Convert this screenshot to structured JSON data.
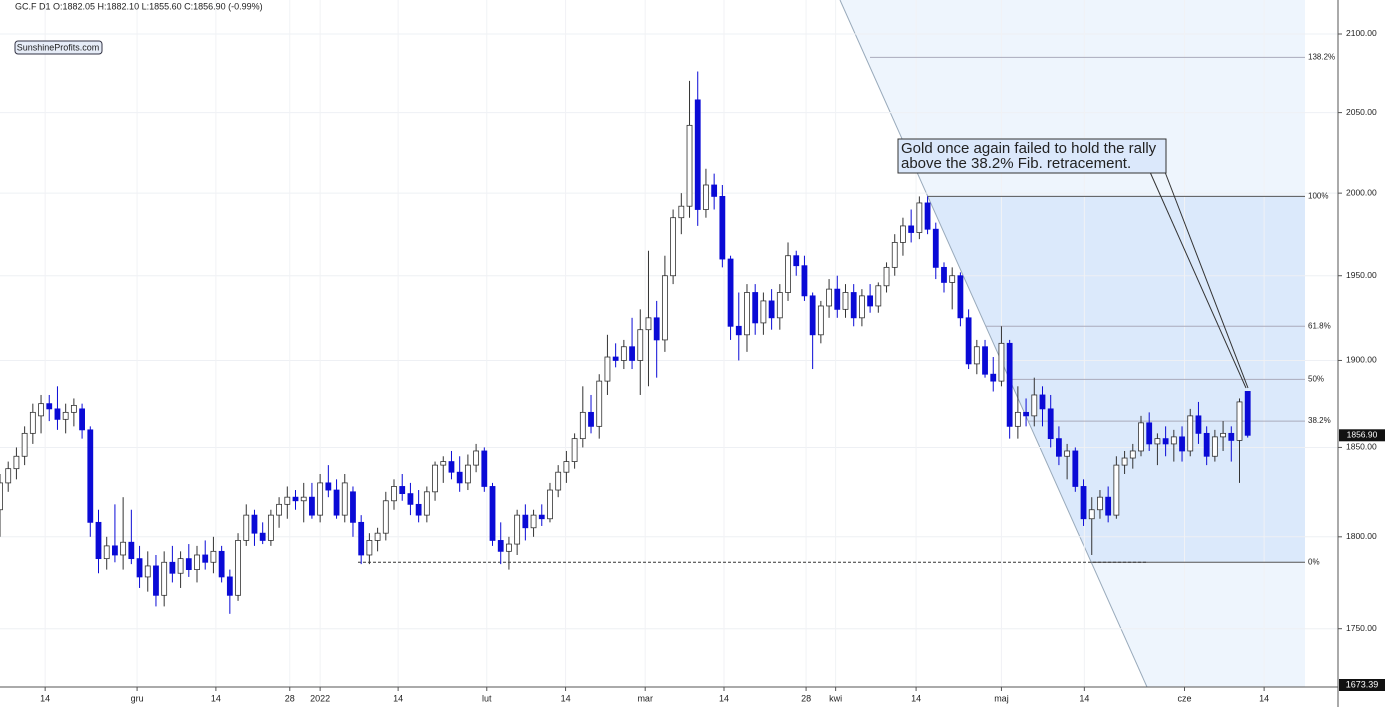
{
  "chart_data": {
    "type": "candlestick",
    "header": "GC.F  D1  O:1882.05  H:1882.10  L:1855.60  C:1856.90  (-0.99%)",
    "watermark_label": "SunshineProfits.com",
    "annotation": [
      "Gold once again failed to hold the rally",
      "above the 38.2% Fib. retracement."
    ],
    "up_color": "#ffffff",
    "down_color": "#0a0ad6",
    "log_scale": true,
    "grid": true,
    "xlim": [
      0,
      163
    ],
    "ylim": [
      1719,
      2122
    ],
    "yticks": [
      {
        "value": 1750,
        "label": "1750.00"
      },
      {
        "value": 1800,
        "label": "1800.00"
      },
      {
        "value": 1850,
        "label": "1850.00"
      },
      {
        "value": 1900,
        "label": "1900.00"
      },
      {
        "value": 1950,
        "label": "1950.00"
      },
      {
        "value": 2000,
        "label": "2000.00"
      },
      {
        "value": 2050,
        "label": "2050.00"
      },
      {
        "value": 2100,
        "label": "2100.00"
      }
    ],
    "xticks": [
      {
        "value": 5.5,
        "label": "14"
      },
      {
        "value": 16.7,
        "label": "gru"
      },
      {
        "value": 26.3,
        "label": "14"
      },
      {
        "value": 35.3,
        "label": "28"
      },
      {
        "value": 39,
        "label": "2022"
      },
      {
        "value": 48.5,
        "label": "14"
      },
      {
        "value": 59.3,
        "label": "lut"
      },
      {
        "value": 68.9,
        "label": "14"
      },
      {
        "value": 78.6,
        "label": "mar"
      },
      {
        "value": 88.2,
        "label": "14"
      },
      {
        "value": 98.2,
        "label": "28"
      },
      {
        "value": 101.8,
        "label": "kwi"
      },
      {
        "value": 111.6,
        "label": "14"
      },
      {
        "value": 122,
        "label": "maj"
      },
      {
        "value": 132.1,
        "label": "14"
      },
      {
        "value": 144.3,
        "label": "cze"
      },
      {
        "value": 154,
        "label": "14"
      }
    ],
    "last_price": {
      "value": 1856.9,
      "label": "1856.90"
    },
    "bottom_label": "1673.39",
    "support_line": 1786,
    "fib_levels": [
      {
        "value": 2085,
        "label": "138.2%"
      },
      {
        "value": 1998,
        "label": "100%"
      },
      {
        "value": 1920,
        "label": "61.8%"
      },
      {
        "value": 1889,
        "label": "50%"
      },
      {
        "value": 1865,
        "label": "38.2%"
      },
      {
        "value": 1786,
        "label": "0%"
      }
    ],
    "open": [
      1815,
      1830,
      1838,
      1845,
      1858,
      1868,
      1875,
      1872,
      1866,
      1870,
      1872,
      1860,
      1808,
      1788,
      1795,
      1790,
      1797,
      1788,
      1778,
      1784,
      1768,
      1786,
      1780,
      1788,
      1782,
      1790,
      1786,
      1792,
      1778,
      1768,
      1798,
      1812,
      1802,
      1798,
      1812,
      1818,
      1822,
      1820,
      1822,
      1812,
      1830,
      1826,
      1812,
      1825,
      1808,
      1790,
      1798,
      1802,
      1820,
      1828,
      1824,
      1818,
      1812,
      1825,
      1840,
      1842,
      1836,
      1830,
      1840,
      1848,
      1828,
      1798,
      1792,
      1796,
      1812,
      1805,
      1812,
      1810,
      1826,
      1836,
      1842,
      1855,
      1870,
      1862,
      1888,
      1902,
      1900,
      1908,
      1900,
      1918,
      1925,
      1912,
      1950,
      1985,
      1992,
      2058,
      1990,
      2005,
      1998,
      1960,
      1920,
      1915,
      1940,
      1922,
      1935,
      1925,
      1940,
      1962,
      1956,
      1938,
      1915,
      1932,
      1942,
      1930,
      1940,
      1925,
      1938,
      1932,
      1944,
      1955,
      1970,
      1980,
      1976,
      1994,
      1978,
      1955,
      1946,
      1950,
      1925,
      1898,
      1908,
      1892,
      1888,
      1910,
      1862,
      1870,
      1868,
      1880,
      1872,
      1855,
      1845,
      1848,
      1828,
      1810,
      1815,
      1822,
      1812,
      1840,
      1844,
      1848,
      1864,
      1852,
      1855,
      1852,
      1856,
      1848,
      1868,
      1858,
      1845,
      1856,
      1858,
      1854,
      1882.05
    ],
    "high": [
      1835,
      1842,
      1850,
      1862,
      1875,
      1880,
      1880,
      1885,
      1875,
      1878,
      1875,
      1862,
      1815,
      1800,
      1818,
      1822,
      1815,
      1795,
      1792,
      1790,
      1792,
      1795,
      1792,
      1796,
      1795,
      1798,
      1800,
      1795,
      1782,
      1802,
      1818,
      1815,
      1808,
      1815,
      1822,
      1828,
      1826,
      1830,
      1830,
      1835,
      1840,
      1832,
      1835,
      1828,
      1812,
      1802,
      1805,
      1825,
      1832,
      1835,
      1830,
      1826,
      1828,
      1842,
      1845,
      1848,
      1845,
      1846,
      1852,
      1850,
      1830,
      1808,
      1800,
      1815,
      1818,
      1815,
      1818,
      1830,
      1840,
      1848,
      1858,
      1885,
      1880,
      1892,
      1915,
      1910,
      1912,
      1925,
      1930,
      1965,
      1935,
      1962,
      1990,
      2000,
      2070,
      2076,
      2015,
      2012,
      2005,
      1962,
      1940,
      1945,
      1945,
      1940,
      1942,
      1945,
      1970,
      1965,
      1962,
      1940,
      1935,
      1948,
      1950,
      1945,
      1945,
      1942,
      1945,
      1946,
      1958,
      1975,
      1985,
      1990,
      1998,
      1998,
      1982,
      1958,
      1955,
      1952,
      1930,
      1912,
      1912,
      1902,
      1920,
      1912,
      1885,
      1878,
      1890,
      1885,
      1880,
      1862,
      1852,
      1850,
      1832,
      1822,
      1826,
      1828,
      1845,
      1848,
      1852,
      1868,
      1870,
      1858,
      1862,
      1860,
      1862,
      1872,
      1876,
      1862,
      1860,
      1865,
      1862,
      1878,
      1882.1
    ],
    "low": [
      1800,
      1825,
      1832,
      1840,
      1852,
      1858,
      1865,
      1860,
      1858,
      1862,
      1855,
      1800,
      1780,
      1782,
      1786,
      1782,
      1785,
      1772,
      1770,
      1762,
      1762,
      1775,
      1772,
      1778,
      1775,
      1782,
      1780,
      1775,
      1758,
      1765,
      1795,
      1795,
      1796,
      1795,
      1805,
      1810,
      1815,
      1808,
      1810,
      1808,
      1822,
      1810,
      1808,
      1800,
      1785,
      1785,
      1792,
      1798,
      1815,
      1820,
      1812,
      1808,
      1808,
      1820,
      1830,
      1832,
      1825,
      1826,
      1836,
      1825,
      1795,
      1785,
      1782,
      1790,
      1798,
      1800,
      1806,
      1808,
      1822,
      1830,
      1838,
      1850,
      1858,
      1855,
      1880,
      1896,
      1895,
      1895,
      1880,
      1885,
      1890,
      1905,
      1945,
      1975,
      1985,
      1980,
      1985,
      1990,
      1955,
      1912,
      1900,
      1905,
      1915,
      1915,
      1918,
      1918,
      1935,
      1950,
      1935,
      1895,
      1910,
      1925,
      1925,
      1925,
      1920,
      1920,
      1928,
      1928,
      1940,
      1950,
      1962,
      1970,
      1972,
      1975,
      1948,
      1940,
      1930,
      1920,
      1895,
      1892,
      1890,
      1882,
      1885,
      1855,
      1855,
      1862,
      1862,
      1862,
      1850,
      1840,
      1832,
      1825,
      1806,
      1790,
      1810,
      1808,
      1810,
      1835,
      1838,
      1845,
      1848,
      1840,
      1845,
      1842,
      1842,
      1845,
      1852,
      1840,
      1842,
      1848,
      1842,
      1830,
      1855.6
    ],
    "close": [
      1830,
      1838,
      1845,
      1858,
      1870,
      1875,
      1872,
      1866,
      1870,
      1874,
      1860,
      1808,
      1788,
      1795,
      1790,
      1797,
      1788,
      1778,
      1784,
      1768,
      1786,
      1780,
      1788,
      1782,
      1790,
      1786,
      1792,
      1778,
      1768,
      1798,
      1812,
      1802,
      1798,
      1812,
      1818,
      1822,
      1820,
      1822,
      1812,
      1830,
      1826,
      1812,
      1830,
      1808,
      1790,
      1798,
      1802,
      1820,
      1828,
      1824,
      1818,
      1812,
      1825,
      1840,
      1842,
      1836,
      1830,
      1840,
      1848,
      1828,
      1798,
      1792,
      1796,
      1812,
      1805,
      1812,
      1810,
      1826,
      1836,
      1842,
      1855,
      1870,
      1862,
      1888,
      1902,
      1900,
      1908,
      1900,
      1918,
      1925,
      1912,
      1950,
      1985,
      1992,
      2042,
      1990,
      2005,
      1998,
      1960,
      1920,
      1915,
      1940,
      1922,
      1935,
      1925,
      1940,
      1962,
      1956,
      1938,
      1915,
      1932,
      1942,
      1930,
      1940,
      1925,
      1938,
      1932,
      1944,
      1955,
      1970,
      1980,
      1976,
      1994,
      1978,
      1955,
      1946,
      1950,
      1925,
      1898,
      1908,
      1892,
      1888,
      1910,
      1862,
      1870,
      1868,
      1880,
      1872,
      1855,
      1845,
      1848,
      1828,
      1810,
      1815,
      1822,
      1812,
      1840,
      1844,
      1848,
      1864,
      1852,
      1855,
      1852,
      1856,
      1848,
      1868,
      1858,
      1845,
      1856,
      1858,
      1854,
      1876,
      1856.9
    ]
  }
}
